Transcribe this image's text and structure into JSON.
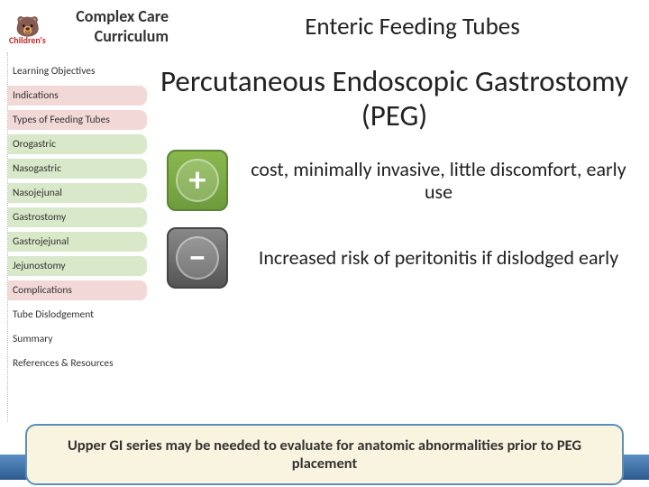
{
  "header": {
    "logo_line1": "Complex Care",
    "logo_line2": "Curriculum",
    "childrens_label": "Children's",
    "slide_title": "Enteric Feeding Tubes"
  },
  "sidebar": {
    "items": [
      {
        "label": "Learning Objectives",
        "style": "white"
      },
      {
        "label": "Indications",
        "style": "red"
      },
      {
        "label": "Types of Feeding Tubes",
        "style": "red"
      },
      {
        "label": "Orogastric",
        "style": "green"
      },
      {
        "label": "Nasogastric",
        "style": "green"
      },
      {
        "label": "Nasojejunal",
        "style": "green"
      },
      {
        "label": "Gastrostomy",
        "style": "green"
      },
      {
        "label": "Gastrojejunal",
        "style": "green"
      },
      {
        "label": "Jejunostomy",
        "style": "green"
      },
      {
        "label": "Complications",
        "style": "red"
      },
      {
        "label": "Tube Dislodgement",
        "style": "white"
      },
      {
        "label": "Summary",
        "style": "white"
      },
      {
        "label": "References & Resources",
        "style": "white"
      }
    ]
  },
  "main": {
    "title": "Percutaneous Endoscopic Gastrostomy (PEG)",
    "pro_text": "cost, minimally invasive, little discomfort, early use",
    "con_text": "Increased risk of peritonitis if dislodged early",
    "callout_text": "Upper GI series may be needed to evaluate for anatomic abnormalities prior to PEG placement"
  },
  "colors": {
    "red_bg": "#f3d8d8",
    "green_bg": "#d9e8c8",
    "plus_bg": "#7ba843",
    "minus_bg": "#666666",
    "callout_border": "#5b8fb8",
    "callout_bg": "#f8f4df",
    "footer_bg": "#3d6fa3"
  }
}
